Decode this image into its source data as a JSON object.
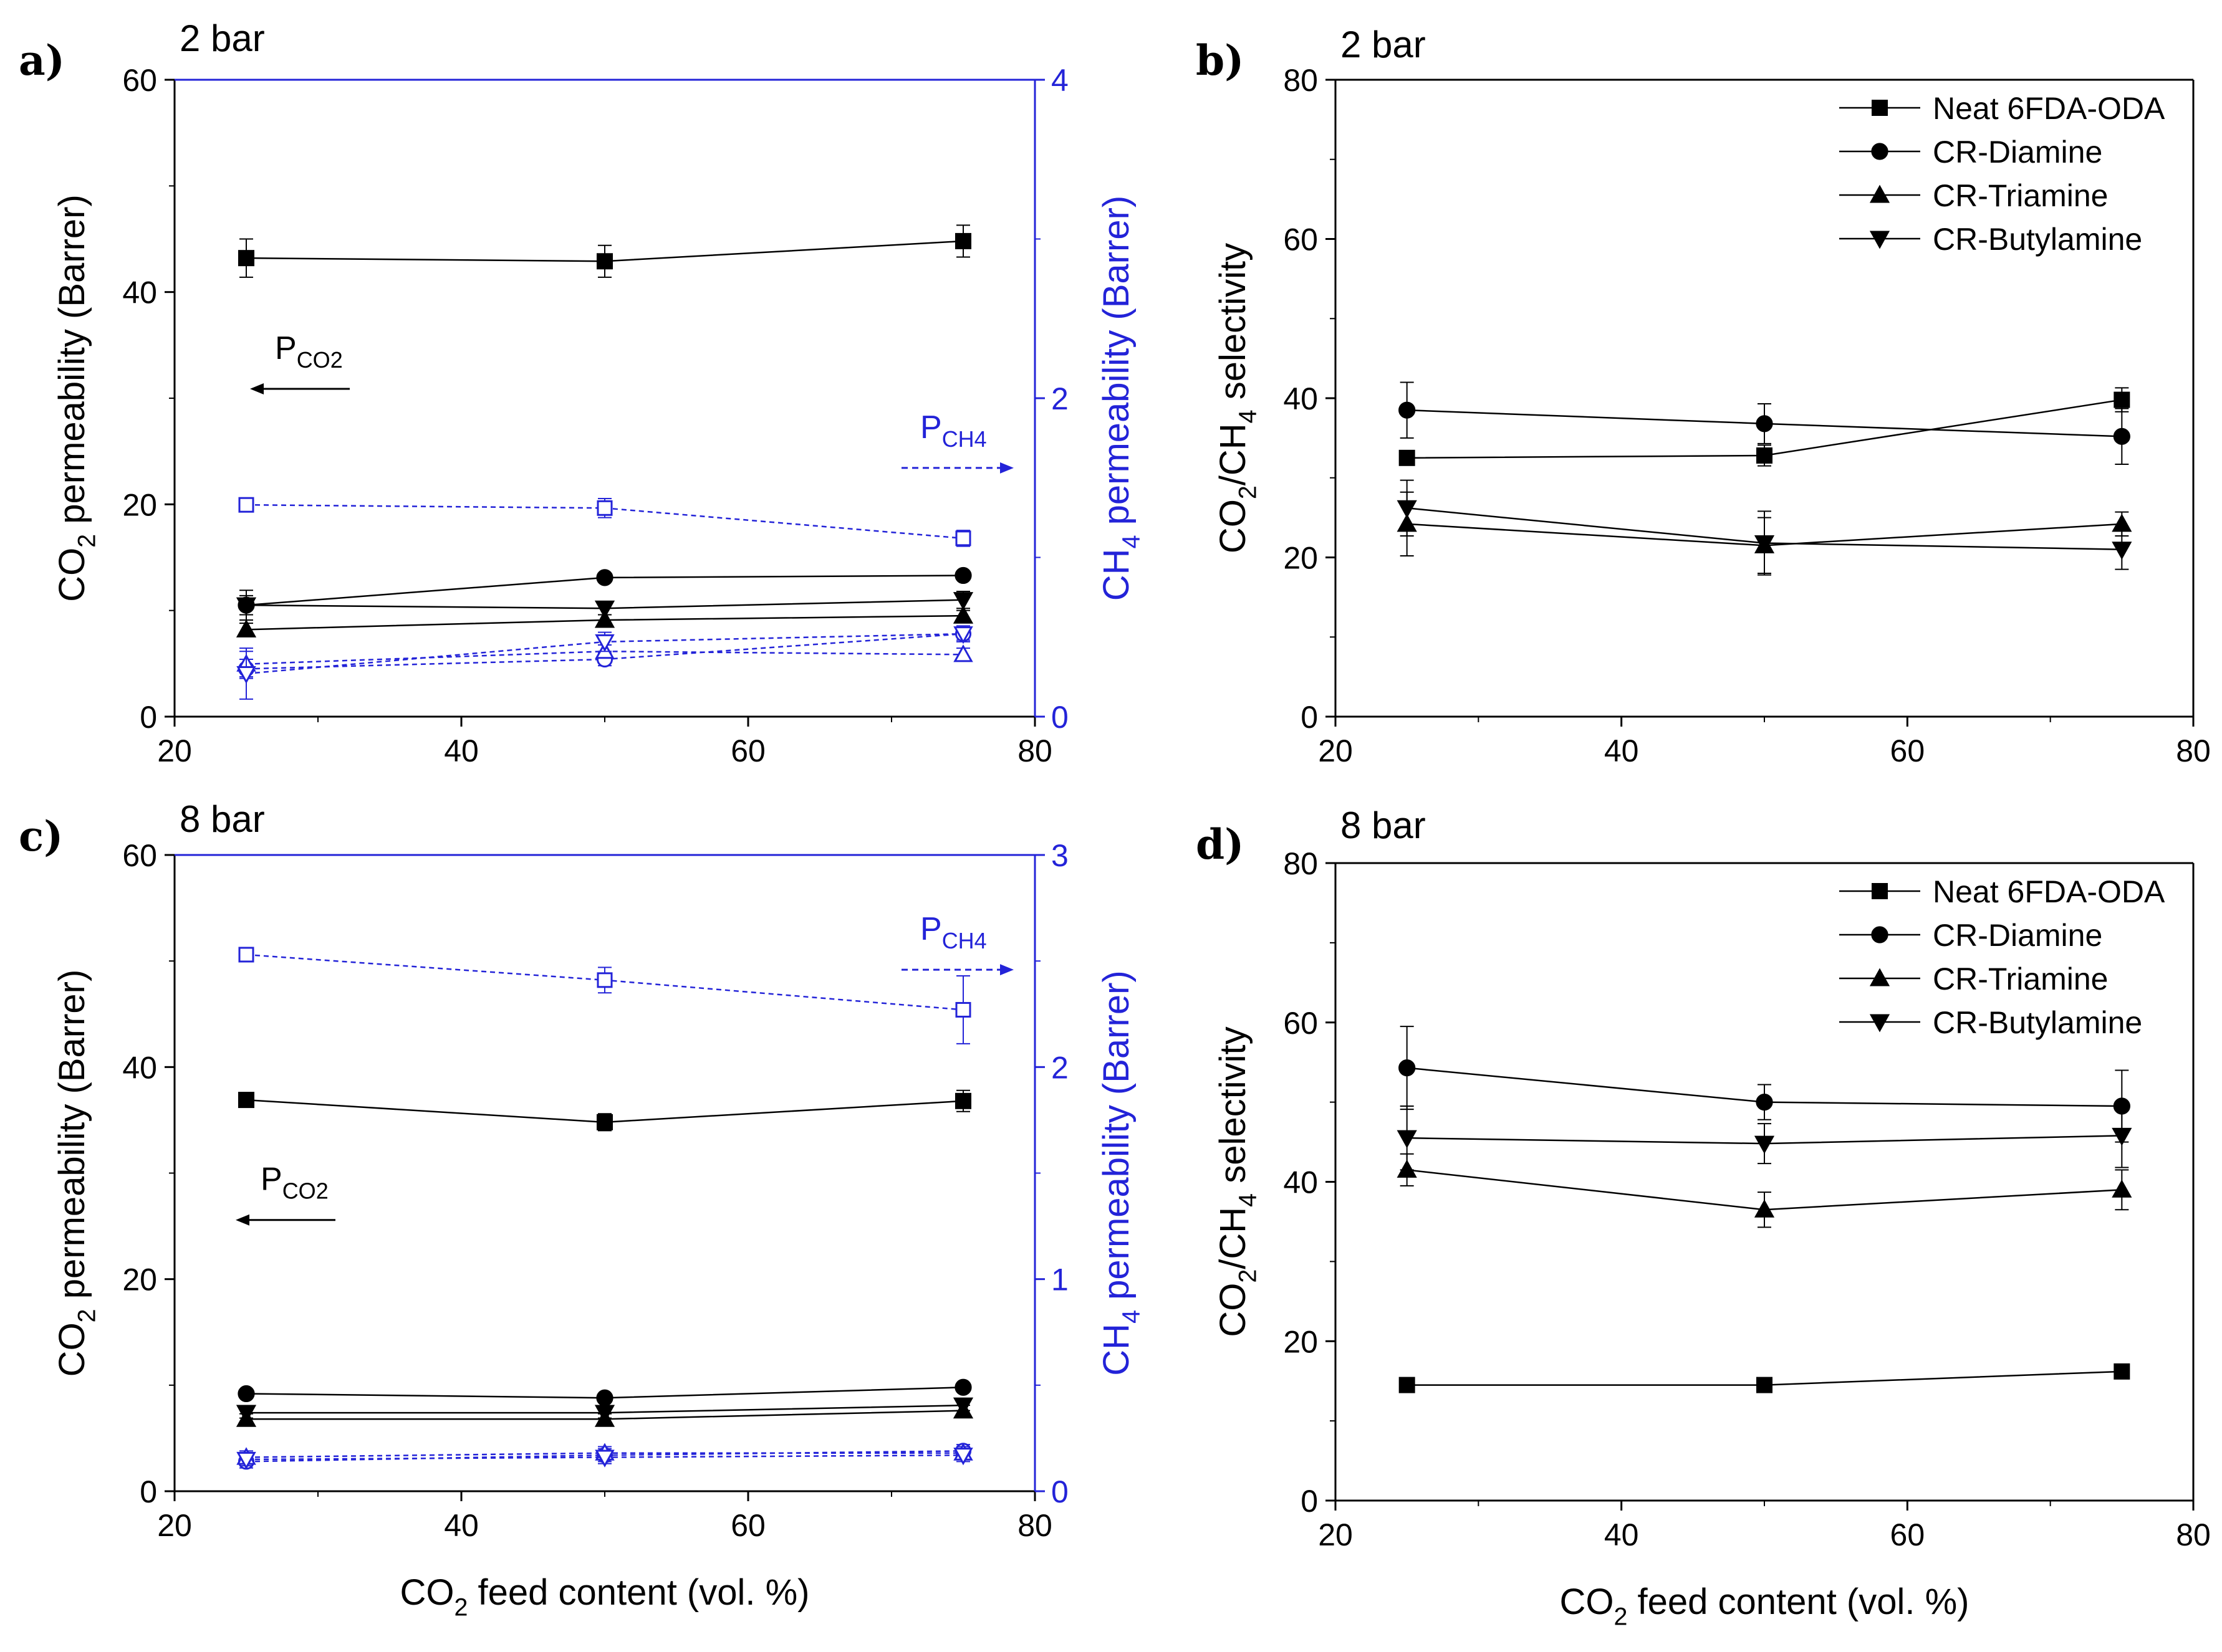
{
  "figure": {
    "xlabel": "CO2 feed content (vol. %)",
    "colors": {
      "axis": "#000000",
      "ch4": "#2323d8"
    }
  },
  "chart_data": [
    {
      "id": "a",
      "panel_label": "a)",
      "condition": "2 bar",
      "type": "line",
      "xlim": [
        20,
        80
      ],
      "xticks": [
        20,
        40,
        60,
        80
      ],
      "show_xlabel": false,
      "ylim": [
        0,
        60
      ],
      "yticks": [
        0,
        20,
        40,
        60
      ],
      "ylabel": "CO2 permeability (Barrer)",
      "y2lim": [
        0,
        4
      ],
      "y2ticks": [
        0,
        2,
        4
      ],
      "y2label": "CH4 permeability (Barrer)",
      "annotations": [
        {
          "text": "P",
          "sub": "CO2",
          "direction": "left",
          "axis": "left",
          "x": 27,
          "y": 33.7
        },
        {
          "text": "P",
          "sub": "CH4",
          "direction": "right",
          "axis": "right",
          "x": 72,
          "y": 1.75
        }
      ],
      "x": [
        25,
        50,
        75
      ],
      "series": [
        {
          "name": "Neat 6FDA-ODA",
          "axis": "left",
          "marker": "square",
          "filled": true,
          "values": [
            43.2,
            42.9,
            44.8
          ],
          "errors": [
            1.8,
            1.5,
            1.5
          ]
        },
        {
          "name": "CR-Diamine",
          "axis": "left",
          "marker": "circle",
          "filled": true,
          "values": [
            10.5,
            13.1,
            13.3
          ],
          "errors": [
            0.9,
            0.4,
            0.4
          ]
        },
        {
          "name": "CR-Triamine",
          "axis": "left",
          "marker": "triangle-up",
          "filled": true,
          "values": [
            8.2,
            9.1,
            9.5
          ],
          "errors": [
            0.6,
            0.5,
            0.5
          ]
        },
        {
          "name": "CR-Butylamine",
          "axis": "left",
          "marker": "triangle-down",
          "filled": true,
          "values": [
            10.5,
            10.2,
            11.0
          ],
          "errors": [
            1.4,
            0.6,
            0.8
          ]
        },
        {
          "name": "Neat 6FDA-ODA",
          "axis": "right",
          "marker": "square",
          "filled": false,
          "values": [
            1.33,
            1.31,
            1.12
          ],
          "errors": [
            0.03,
            0.06,
            0.05
          ]
        },
        {
          "name": "CR-Diamine",
          "axis": "right",
          "marker": "circle",
          "filled": false,
          "values": [
            0.3,
            0.36,
            0.52
          ],
          "errors": [
            0.06,
            0.04,
            0.04
          ]
        },
        {
          "name": "CR-Triamine",
          "axis": "right",
          "marker": "triangle-up",
          "filled": false,
          "values": [
            0.33,
            0.41,
            0.39
          ],
          "errors": [
            0.08,
            0.04,
            0.04
          ]
        },
        {
          "name": "CR-Butylamine",
          "axis": "right",
          "marker": "triangle-down",
          "filled": false,
          "values": [
            0.27,
            0.47,
            0.52
          ],
          "errors": [
            0.16,
            0.06,
            0.05
          ]
        }
      ]
    },
    {
      "id": "b",
      "panel_label": "b)",
      "condition": "2 bar",
      "type": "line",
      "xlim": [
        20,
        80
      ],
      "xticks": [
        20,
        40,
        60,
        80
      ],
      "show_xlabel": false,
      "ylim": [
        0,
        80
      ],
      "yticks": [
        0,
        20,
        40,
        60,
        80
      ],
      "ylabel": "CO2/CH4 selectivity",
      "legend": "top-right",
      "x": [
        25,
        50,
        75
      ],
      "series": [
        {
          "name": "Neat 6FDA-ODA",
          "marker": "square",
          "filled": true,
          "values": [
            32.5,
            32.8,
            39.8
          ],
          "errors": [
            0.5,
            1.3,
            1.5
          ]
        },
        {
          "name": "CR-Diamine",
          "marker": "circle",
          "filled": true,
          "values": [
            38.5,
            36.8,
            35.2
          ],
          "errors": [
            3.5,
            2.5,
            3.5
          ]
        },
        {
          "name": "CR-Triamine",
          "marker": "triangle-up",
          "filled": true,
          "values": [
            24.2,
            21.5,
            24.2
          ],
          "errors": [
            4.0,
            3.5,
            1.5
          ]
        },
        {
          "name": "CR-Butylamine",
          "marker": "triangle-down",
          "filled": true,
          "values": [
            26.2,
            21.8,
            21.0
          ],
          "errors": [
            3.5,
            4.0,
            2.5
          ]
        }
      ]
    },
    {
      "id": "c",
      "panel_label": "c)",
      "condition": "8 bar",
      "type": "line",
      "xlim": [
        20,
        80
      ],
      "xticks": [
        20,
        40,
        60,
        80
      ],
      "show_xlabel": true,
      "ylim": [
        0,
        60
      ],
      "yticks": [
        0,
        20,
        40,
        60
      ],
      "ylabel": "CO2 permeability (Barrer)",
      "y2lim": [
        0,
        3
      ],
      "y2ticks": [
        0,
        1,
        2,
        3
      ],
      "y2label": "CH4 permeability (Barrer)",
      "annotations": [
        {
          "text": "P",
          "sub": "CO2",
          "direction": "left",
          "axis": "left",
          "x": 26,
          "y": 28.4
        },
        {
          "text": "P",
          "sub": "CH4",
          "direction": "right",
          "axis": "right",
          "x": 72,
          "y": 2.6
        }
      ],
      "x": [
        25,
        50,
        75
      ],
      "series": [
        {
          "name": "Neat 6FDA-ODA",
          "axis": "left",
          "marker": "square",
          "filled": true,
          "values": [
            36.9,
            34.8,
            36.8
          ],
          "errors": [
            0.3,
            0.8,
            1.0
          ]
        },
        {
          "name": "CR-Diamine",
          "axis": "left",
          "marker": "circle",
          "filled": true,
          "values": [
            9.2,
            8.8,
            9.8
          ],
          "errors": [
            0.3,
            0.3,
            0.3
          ]
        },
        {
          "name": "CR-Triamine",
          "axis": "left",
          "marker": "triangle-up",
          "filled": true,
          "values": [
            6.8,
            6.8,
            7.6
          ],
          "errors": [
            0.5,
            0.5,
            0.5
          ]
        },
        {
          "name": "CR-Butylamine",
          "axis": "left",
          "marker": "triangle-down",
          "filled": true,
          "values": [
            7.4,
            7.4,
            8.1
          ],
          "errors": [
            0.5,
            0.5,
            0.5
          ]
        },
        {
          "name": "Neat 6FDA-ODA",
          "axis": "right",
          "marker": "square",
          "filled": false,
          "values": [
            2.53,
            2.41,
            2.27
          ],
          "errors": [
            0.03,
            0.06,
            0.16
          ]
        },
        {
          "name": "CR-Diamine",
          "axis": "right",
          "marker": "circle",
          "filled": false,
          "values": [
            0.14,
            0.17,
            0.19
          ],
          "errors": [
            0.03,
            0.03,
            0.03
          ]
        },
        {
          "name": "CR-Triamine",
          "axis": "right",
          "marker": "triangle-up",
          "filled": false,
          "values": [
            0.16,
            0.18,
            0.18
          ],
          "errors": [
            0.03,
            0.03,
            0.03
          ]
        },
        {
          "name": "CR-Butylamine",
          "axis": "right",
          "marker": "triangle-down",
          "filled": false,
          "values": [
            0.15,
            0.16,
            0.17
          ],
          "errors": [
            0.03,
            0.03,
            0.03
          ]
        }
      ]
    },
    {
      "id": "d",
      "panel_label": "d)",
      "condition": "8 bar",
      "type": "line",
      "xlim": [
        20,
        80
      ],
      "xticks": [
        20,
        40,
        60,
        80
      ],
      "show_xlabel": true,
      "ylim": [
        0,
        80
      ],
      "yticks": [
        0,
        20,
        40,
        60,
        80
      ],
      "ylabel": "CO2/CH4 selectivity",
      "legend": "top-right",
      "x": [
        25,
        50,
        75
      ],
      "series": [
        {
          "name": "Neat 6FDA-ODA",
          "marker": "square",
          "filled": true,
          "values": [
            14.5,
            14.5,
            16.2
          ],
          "errors": [
            0.3,
            0.3,
            0.3
          ]
        },
        {
          "name": "CR-Diamine",
          "marker": "circle",
          "filled": true,
          "values": [
            54.3,
            50.0,
            49.5
          ],
          "errors": [
            5.2,
            2.2,
            4.5
          ]
        },
        {
          "name": "CR-Triamine",
          "marker": "triangle-up",
          "filled": true,
          "values": [
            41.5,
            36.5,
            39.0
          ],
          "errors": [
            2.0,
            2.2,
            2.5
          ]
        },
        {
          "name": "CR-Butylamine",
          "marker": "triangle-down",
          "filled": true,
          "values": [
            45.5,
            44.8,
            45.8
          ],
          "errors": [
            4.0,
            2.5,
            4.0
          ]
        }
      ]
    }
  ]
}
